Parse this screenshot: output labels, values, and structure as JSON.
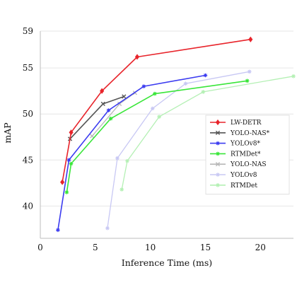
{
  "chart_data": {
    "type": "line",
    "title": "",
    "xlabel": "Inference Time (ms)",
    "ylabel": "mAP",
    "xlim": [
      0,
      23
    ],
    "ylim": [
      36.5,
      59
    ],
    "xticks": [
      0,
      5,
      10,
      15,
      20
    ],
    "yticks": [
      40,
      45,
      50,
      55,
      59
    ],
    "grid": true,
    "legend_position": "right",
    "series": [
      {
        "name": "LW-DETR",
        "color": "#e8242b",
        "marker": "diamond",
        "points": [
          [
            2.0,
            42.6
          ],
          [
            2.8,
            48.0
          ],
          [
            5.6,
            52.5
          ],
          [
            8.8,
            56.2
          ],
          [
            19.1,
            58.1
          ]
        ]
      },
      {
        "name": "YOLO-NAS*",
        "color": "#555555",
        "marker": "x",
        "points": [
          [
            2.7,
            47.3
          ],
          [
            5.7,
            51.1
          ],
          [
            7.6,
            51.9
          ]
        ]
      },
      {
        "name": "YOLOv8*",
        "color": "#3b3bf0",
        "marker": "star",
        "points": [
          [
            1.6,
            37.4
          ],
          [
            2.6,
            45.0
          ],
          [
            6.2,
            50.4
          ],
          [
            9.4,
            53.0
          ],
          [
            15.0,
            54.2
          ]
        ]
      },
      {
        "name": "RTMDet*",
        "color": "#39e639",
        "marker": "star",
        "points": [
          [
            2.4,
            41.5
          ],
          [
            2.8,
            44.6
          ],
          [
            6.4,
            49.5
          ],
          [
            10.4,
            52.2
          ],
          [
            18.8,
            53.6
          ]
        ]
      },
      {
        "name": "YOLO-NAS",
        "color": "#b8b8b8",
        "marker": "x",
        "points": [
          [
            4.7,
            47.6
          ],
          [
            7.2,
            51.1
          ],
          [
            8.6,
            52.3
          ]
        ]
      },
      {
        "name": "YOLOv8",
        "color": "#c8c8f4",
        "marker": "star",
        "points": [
          [
            6.1,
            37.6
          ],
          [
            7.0,
            45.2
          ],
          [
            10.2,
            50.6
          ],
          [
            13.2,
            53.3
          ],
          [
            19.0,
            54.6
          ]
        ]
      },
      {
        "name": "RTMDet",
        "color": "#b4f0b4",
        "marker": "star",
        "points": [
          [
            7.4,
            41.8
          ],
          [
            7.9,
            44.9
          ],
          [
            10.8,
            49.7
          ],
          [
            14.8,
            52.4
          ],
          [
            23.0,
            54.1
          ]
        ]
      }
    ]
  }
}
